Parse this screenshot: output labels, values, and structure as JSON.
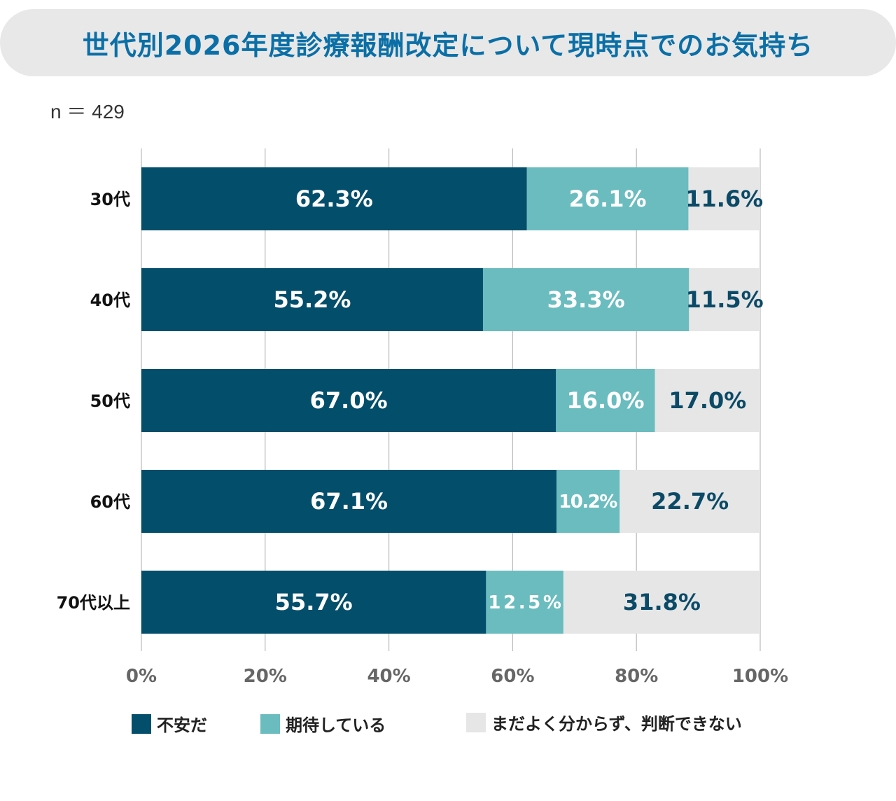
{
  "title": "世代別2026年度診療報酬改定について現時点でのお気持ち",
  "sample_size": "n ＝ 429",
  "chart_data": {
    "type": "bar",
    "orientation": "horizontal",
    "stacked": true,
    "categories": [
      "30代",
      "40代",
      "50代",
      "60代",
      "70代以上"
    ],
    "series": [
      {
        "name": "不安だ",
        "color": "#034e6b",
        "values": [
          62.3,
          55.2,
          67.0,
          67.1,
          55.7
        ]
      },
      {
        "name": "期待している",
        "color": "#6bbcbf",
        "values": [
          26.1,
          33.3,
          16.0,
          10.2,
          12.5
        ]
      },
      {
        "name": "まだよく分からず、判断できない",
        "color": "#e6e6e6",
        "values": [
          11.6,
          11.5,
          17.0,
          22.7,
          31.8
        ]
      }
    ],
    "data_labels": [
      [
        "62.3%",
        "55.2%",
        "67.0%",
        "67.1%",
        "55.7%"
      ],
      [
        "26.1%",
        "33.3%",
        "16.0%",
        "10.2%",
        "12.5%"
      ],
      [
        "11.6%",
        "11.5%",
        "17.0%",
        "22.7%",
        "31.8%"
      ]
    ],
    "xlim": [
      0,
      100
    ],
    "x_ticks": [
      "0%",
      "20%",
      "40%",
      "60%",
      "80%",
      "100%"
    ],
    "grid": true,
    "legend_position": "bottom"
  }
}
